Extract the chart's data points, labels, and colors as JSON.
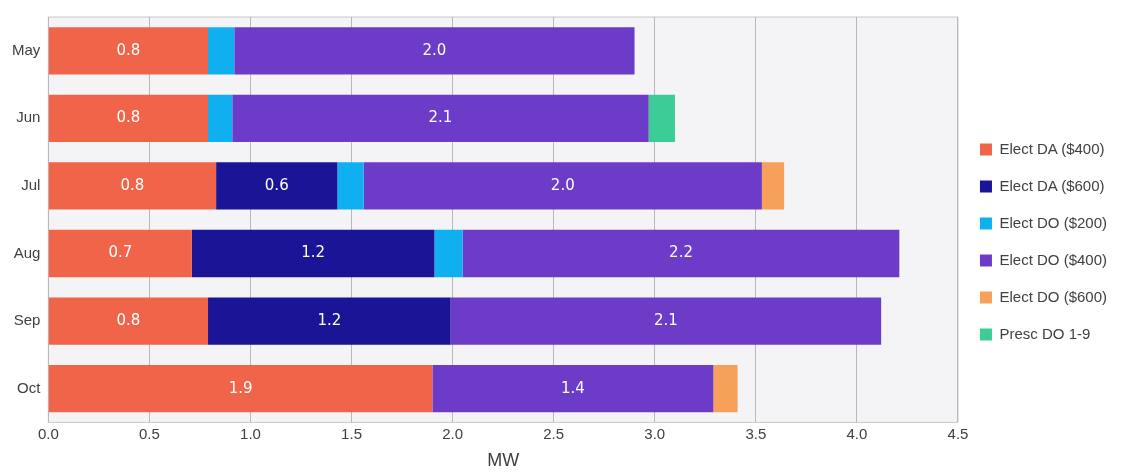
{
  "chart_data": {
    "type": "bar",
    "orientation": "horizontal",
    "stacked": true,
    "xlabel": "MW",
    "categories": [
      "May",
      "Jun",
      "Jul",
      "Aug",
      "Sep",
      "Oct"
    ],
    "series": [
      {
        "name": "Elect DA ($400)",
        "color": "#f0654a",
        "values": [
          0.79,
          0.79,
          0.83,
          0.71,
          0.79,
          1.9
        ],
        "value_labels": [
          "0.8",
          "0.8",
          "0.8",
          "0.7",
          "0.8",
          "1.9"
        ]
      },
      {
        "name": "Elect DA ($600)",
        "color": "#1a1496",
        "values": [
          null,
          null,
          0.6,
          1.2,
          1.2,
          null
        ],
        "value_labels": [
          null,
          null,
          "0.6",
          "1.2",
          "1.2",
          null
        ]
      },
      {
        "name": "Elect DO ($200)",
        "color": "#10b0f0",
        "values": [
          0.13,
          0.12,
          0.13,
          0.14,
          null,
          null
        ]
      },
      {
        "name": "Elect DO ($400)",
        "color": "#6c3cc8",
        "values": [
          1.98,
          2.06,
          1.97,
          2.16,
          2.13,
          1.39
        ],
        "value_labels": [
          "2.0",
          "2.1",
          "2.0",
          "2.2",
          "2.1",
          "1.4"
        ]
      },
      {
        "name": "Elect DO ($600)",
        "color": "#f7a05a",
        "values": [
          null,
          null,
          0.11,
          null,
          null,
          0.12
        ]
      },
      {
        "name": "Presc DO 1-9",
        "color": "#3ccc96",
        "values": [
          null,
          0.13,
          null,
          null,
          null,
          null
        ]
      }
    ],
    "xlim": [
      0,
      4.5
    ],
    "xticks": [
      {
        "value": 0,
        "label": "0.0"
      },
      0.5,
      {
        "value": 1,
        "label": "1.0"
      },
      1.5,
      {
        "value": 2,
        "label": "2.0"
      },
      2.5,
      {
        "value": 3,
        "label": "3.0"
      },
      3.5,
      {
        "value": 4,
        "label": "4.0"
      },
      4.5
    ],
    "grid": "x",
    "legend": "right"
  }
}
